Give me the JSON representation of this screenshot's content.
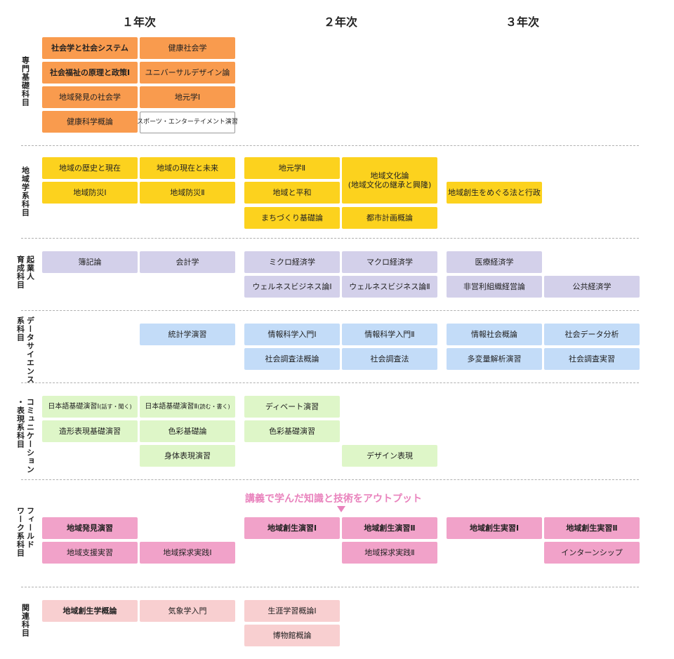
{
  "years": [
    "１年次",
    "２年次",
    "３年次"
  ],
  "categories": {
    "senmon": [
      "専門基礎科目"
    ],
    "chiiki": [
      "地域学系科目"
    ],
    "kigyo": [
      "起業人",
      "育成科目"
    ],
    "data": [
      "データサイエンス",
      "系科目"
    ],
    "comm": [
      "コミュニケーション",
      "・表現系科目"
    ],
    "field": [
      "フィールド",
      "ワーク系科目"
    ],
    "kanren": [
      "関連科目"
    ]
  },
  "courses": {
    "s1": "社会学と社会システム",
    "s2": "健康社会学",
    "s3": "社会福祉の原理と政策Ⅰ",
    "s4": "ユニバーサルデザイン論",
    "s5": "地域発見の社会学",
    "s6": "地元学Ⅰ",
    "s7": "健康科学概論",
    "s8": "スポーツ・エンターテイメント演習",
    "c1": "地域の歴史と現在",
    "c2": "地域の現在と未来",
    "c3": "地域防災Ⅰ",
    "c4": "地域防災Ⅱ",
    "c5": "地元学Ⅱ",
    "c6a": "地域文化論",
    "c6b": "(地域文化の継承と興隆)",
    "c7": "地域と平和",
    "c8": "まちづくり基礎論",
    "c9": "都市計画概論",
    "c10": "地域創生をめぐる法と行政",
    "k1": "簿記論",
    "k2": "会計学",
    "k3": "ミクロ経済学",
    "k4": "マクロ経済学",
    "k5": "医療経済学",
    "k6": "ウェルネスビジネス論Ⅰ",
    "k7": "ウェルネスビジネス論Ⅱ",
    "k8": "非営利組織経営論",
    "k9": "公共経済学",
    "d1": "統計学演習",
    "d2": "情報科学入門Ⅰ",
    "d3": "情報科学入門Ⅱ",
    "d4": "情報社会概論",
    "d5": "社会データ分析",
    "d6": "社会調査法概論",
    "d7": "社会調査法",
    "d8": "多変量解析演習",
    "d9": "社会調査実習",
    "m1": "日本語基礎演習Ⅰ",
    "m1s": "(話す・聞く)",
    "m2": "日本語基礎演習Ⅱ",
    "m2s": "(読む・書く)",
    "m3": "ディベート演習",
    "m4": "造形表現基礎演習",
    "m5": "色彩基礎論",
    "m6": "色彩基礎演習",
    "m7": "身体表現演習",
    "m8": "デザイン表現",
    "f1": "地域発見演習",
    "f2": "地域創生演習Ⅰ",
    "f3": "地域創生演習Ⅱ",
    "f4": "地域創生実習Ⅰ",
    "f5": "地域創生実習Ⅱ",
    "f6": "地域支援実習",
    "f7": "地域探求実践Ⅰ",
    "f8": "地域探求実践Ⅱ",
    "f9": "インターンシップ",
    "r1": "地域創生学概論",
    "r2": "気象学入門",
    "r3": "生涯学習概論Ⅰ",
    "r4": "博物館概論"
  },
  "note": "講義で学んだ知識と技術をアウトプット",
  "colors": {
    "senmon": "#f99b4e",
    "chiiki": "#fcd21e",
    "kigyo": "#d3d0ea",
    "data": "#c3dcf8",
    "comm": "#def6c8",
    "field": "#f1a2c9",
    "kanren": "#f8cfd0",
    "note": "#e983bd"
  }
}
